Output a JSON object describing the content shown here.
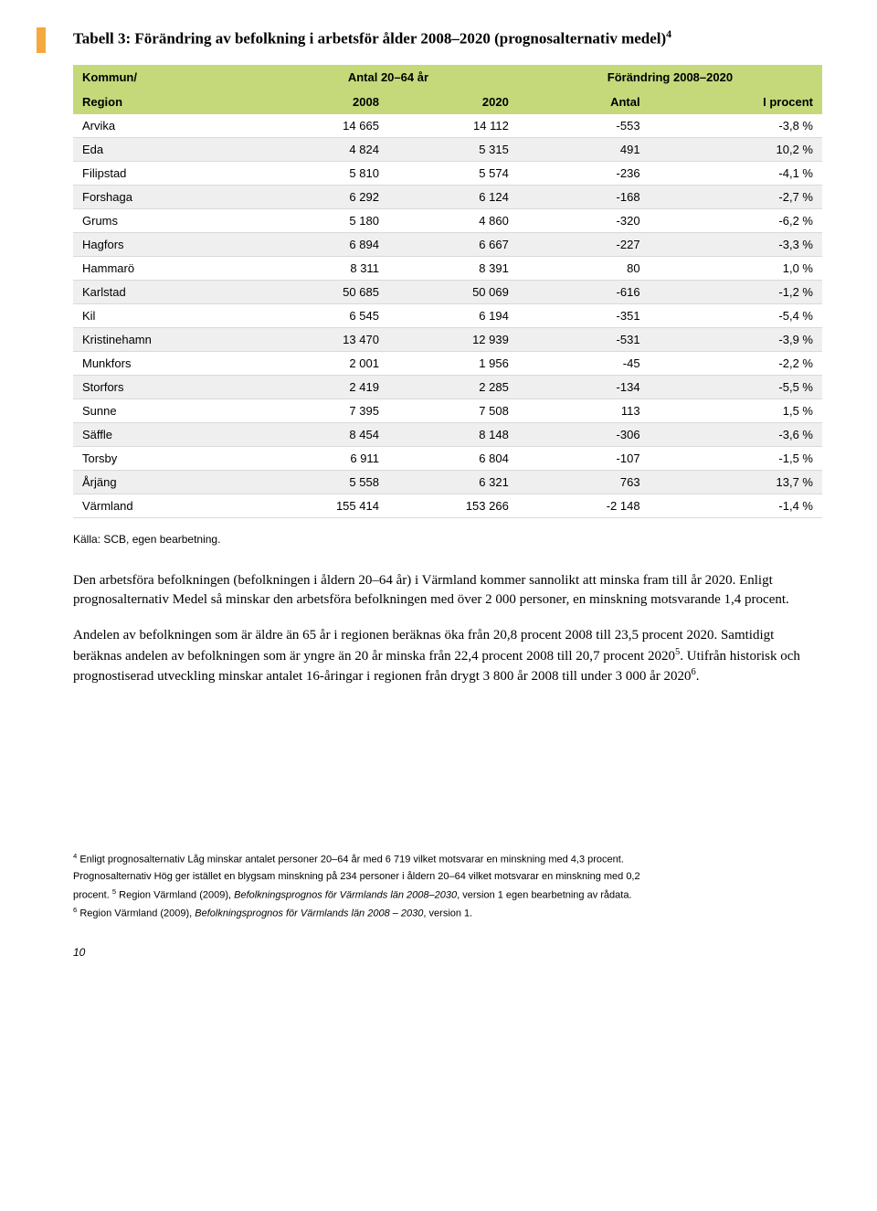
{
  "title": "Tabell 3: Förändring av befolkning i arbetsför ålder 2008–2020 (prognosalternativ medel)",
  "title_sup": "4",
  "left_bar_color": "#f4a940",
  "header_bg": "#c5d97a",
  "table": {
    "head_row1": {
      "col1": "Kommun/",
      "col2_span": "Antal 20–64 år",
      "col4_span": "Förändring 2008–2020"
    },
    "head_row2": {
      "col1": "Region",
      "col2": "2008",
      "col3": "2020",
      "col4": "Antal",
      "col5": "I procent"
    },
    "rows": [
      {
        "region": "Arvika",
        "c2008": "14 665",
        "c2020": "14 112",
        "antal": "-553",
        "pct": "-3,8 %",
        "alt": false
      },
      {
        "region": "Eda",
        "c2008": "4 824",
        "c2020": "5 315",
        "antal": "491",
        "pct": "10,2 %",
        "alt": true
      },
      {
        "region": "Filipstad",
        "c2008": "5 810",
        "c2020": "5 574",
        "antal": "-236",
        "pct": "-4,1 %",
        "alt": false
      },
      {
        "region": "Forshaga",
        "c2008": "6 292",
        "c2020": "6 124",
        "antal": "-168",
        "pct": "-2,7 %",
        "alt": true
      },
      {
        "region": "Grums",
        "c2008": "5 180",
        "c2020": "4 860",
        "antal": "-320",
        "pct": "-6,2 %",
        "alt": false
      },
      {
        "region": "Hagfors",
        "c2008": "6 894",
        "c2020": "6 667",
        "antal": "-227",
        "pct": "-3,3 %",
        "alt": true
      },
      {
        "region": "Hammarö",
        "c2008": "8 311",
        "c2020": "8 391",
        "antal": "80",
        "pct": "1,0 %",
        "alt": false
      },
      {
        "region": "Karlstad",
        "c2008": "50 685",
        "c2020": "50 069",
        "antal": "-616",
        "pct": "-1,2 %",
        "alt": true
      },
      {
        "region": "Kil",
        "c2008": "6 545",
        "c2020": "6 194",
        "antal": "-351",
        "pct": "-5,4 %",
        "alt": false
      },
      {
        "region": "Kristinehamn",
        "c2008": "13 470",
        "c2020": "12 939",
        "antal": "-531",
        "pct": "-3,9 %",
        "alt": true
      },
      {
        "region": "Munkfors",
        "c2008": "2 001",
        "c2020": "1 956",
        "antal": "-45",
        "pct": "-2,2 %",
        "alt": false
      },
      {
        "region": "Storfors",
        "c2008": "2 419",
        "c2020": "2 285",
        "antal": "-134",
        "pct": "-5,5 %",
        "alt": true
      },
      {
        "region": "Sunne",
        "c2008": "7 395",
        "c2020": "7 508",
        "antal": "113",
        "pct": "1,5 %",
        "alt": false
      },
      {
        "region": "Säffle",
        "c2008": "8 454",
        "c2020": "8 148",
        "antal": "-306",
        "pct": "-3,6 %",
        "alt": true
      },
      {
        "region": "Torsby",
        "c2008": "6 911",
        "c2020": "6 804",
        "antal": "-107",
        "pct": "-1,5 %",
        "alt": false
      },
      {
        "region": "Årjäng",
        "c2008": "5 558",
        "c2020": "6 321",
        "antal": "763",
        "pct": "13,7 %",
        "alt": true
      },
      {
        "region": "Värmland",
        "c2008": "155 414",
        "c2020": "153 266",
        "antal": "-2 148",
        "pct": "-1,4 %",
        "alt": false
      }
    ]
  },
  "source": "Källa: SCB, egen bearbetning.",
  "paragraphs": {
    "p1": "Den arbetsföra befolkningen (befolkningen i åldern 20–64 år) i Värmland kommer sannolikt att minska fram till år 2020. Enligt prognosalternativ Medel så minskar den arbetsföra befolkningen med över 2 000 personer, en minskning motsvarande 1,4 procent.",
    "p2_a": "Andelen av befolkningen som är äldre än 65 år i regionen beräknas öka från 20,8 procent 2008 till 23,5 procent 2020. Samtidigt beräknas andelen av befolkningen som är yngre än 20 år minska från 22,4 procent 2008 till 20,7 procent 2020",
    "p2_sup1": "5",
    "p2_b": ". Utifrån historisk och prognostiserad utveckling minskar antalet 16-åringar i regionen från drygt 3 800 år 2008 till under 3 000 år 2020",
    "p2_sup2": "6",
    "p2_c": "."
  },
  "footnotes": {
    "f4_sup": "4",
    "f4a": " Enligt prognosalternativ Låg minskar antalet personer 20–64 år med 6 719 vilket motsvarar en minskning med 4,3 procent.",
    "f4b": "Prognosalternativ Hög ger istället en blygsam minskning på 234 personer i åldern 20–64 vilket motsvarar en minskning med 0,2",
    "f4c_a": "procent. ",
    "f5_sup": "5",
    "f5a": " Region Värmland (2009), ",
    "f5_italic": "Befolkningsprognos för Värmlands län 2008–2030",
    "f5b": ", version 1 egen bearbetning av rådata.",
    "f6_sup": "6",
    "f6a": " Region Värmland (2009), ",
    "f6_italic": "Befolkningsprognos för Värmlands län 2008 – 2030",
    "f6b": ", version 1."
  },
  "page_number": "10"
}
